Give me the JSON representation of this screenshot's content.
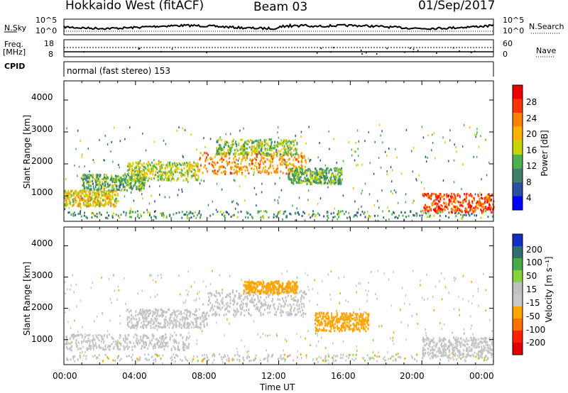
{
  "header": {
    "radar": "Hokkaido West (fitACF)",
    "beam": "Beam 03",
    "date": "01/Sep/2017"
  },
  "top_panels": {
    "nsky_label": "N.Sky",
    "nsky_tick_top": "10^5",
    "nsky_tick_bottom": "10^0",
    "nsearch_label": "N.Search",
    "nsearch_tick_top": "10^5",
    "nsearch_tick_bottom": "10^0",
    "freq_label": "Freq.",
    "freq_unit": "[MHz]",
    "freq_ticks": [
      "18",
      "8"
    ],
    "nave_label": "Nave",
    "nave_ticks": [
      "60",
      "0"
    ],
    "cpid_label": "CPID",
    "cpid_text": "normal (fast stereo) 153"
  },
  "colors": {
    "power_scale": [
      "#0000ff",
      "#2a4fa0",
      "#3f7f6a",
      "#4caf50",
      "#c8d400",
      "#ffb300",
      "#ff7f00",
      "#ff3300",
      "#ee0000"
    ],
    "velocity_scale": [
      "#1030c0",
      "#2f6f6f",
      "#46aa46",
      "#8ad23a",
      "#c0c0c0",
      "#c8c8c8",
      "#ffa500",
      "#ff7000",
      "#ff2000",
      "#e00000"
    ]
  },
  "chart_data": [
    {
      "type": "heatmap",
      "name": "power",
      "ylabel": "Slant Range [km]",
      "yticks": [
        "1000",
        "2000",
        "3000",
        "4000"
      ],
      "ylim": [
        200,
        4600
      ],
      "colorbar_label": "Power [dB]",
      "colorbar_ticks": [
        "4",
        "8",
        "12",
        "16",
        "20",
        "24",
        "28"
      ],
      "colorbar_range": [
        0,
        32
      ],
      "features": [
        {
          "x": [
            0.0,
            3.0
          ],
          "y": [
            700,
            1200
          ],
          "value": 18
        },
        {
          "x": [
            1.0,
            4.5
          ],
          "y": [
            1200,
            1700
          ],
          "value": 12
        },
        {
          "x": [
            3.5,
            7.5
          ],
          "y": [
            1500,
            2100
          ],
          "value": 16
        },
        {
          "x": [
            7.5,
            13.5
          ],
          "y": [
            1700,
            2400
          ],
          "value": 22
        },
        {
          "x": [
            8.5,
            13.0
          ],
          "y": [
            2300,
            2800
          ],
          "value": 14
        },
        {
          "x": [
            12.5,
            15.5
          ],
          "y": [
            1400,
            1900
          ],
          "value": 12
        },
        {
          "x": [
            20.0,
            24.0
          ],
          "y": [
            500,
            1100
          ],
          "value": 26
        }
      ]
    },
    {
      "type": "heatmap",
      "name": "velocity",
      "ylabel": "Slant Range [km]",
      "yticks": [
        "1000",
        "2000",
        "3000",
        "4000"
      ],
      "ylim": [
        200,
        4600
      ],
      "colorbar_label": "Velocity [m s⁻¹]",
      "colorbar_ticks": [
        "200",
        "100",
        "50",
        "15",
        "-15",
        "-50",
        "-100",
        "-200"
      ],
      "colorbar_range": [
        -250,
        250
      ],
      "xlabel": "Time UT",
      "xticks": [
        "00:00",
        "04:00",
        "08:00",
        "12:00",
        "16:00",
        "20:00",
        "00:00"
      ],
      "xlim": [
        0,
        24
      ],
      "features": [
        {
          "x": [
            0.0,
            7.0
          ],
          "y": [
            700,
            1200
          ],
          "value": 0
        },
        {
          "x": [
            3.5,
            8.0
          ],
          "y": [
            1400,
            2000
          ],
          "value": 0
        },
        {
          "x": [
            8.0,
            13.5
          ],
          "y": [
            1800,
            2600
          ],
          "value": 10
        },
        {
          "x": [
            10.0,
            13.0
          ],
          "y": [
            2500,
            2900
          ],
          "value": -70
        },
        {
          "x": [
            14.0,
            17.0
          ],
          "y": [
            1300,
            1900
          ],
          "value": -80
        },
        {
          "x": [
            20.0,
            24.0
          ],
          "y": [
            500,
            1100
          ],
          "value": 0
        }
      ]
    }
  ]
}
